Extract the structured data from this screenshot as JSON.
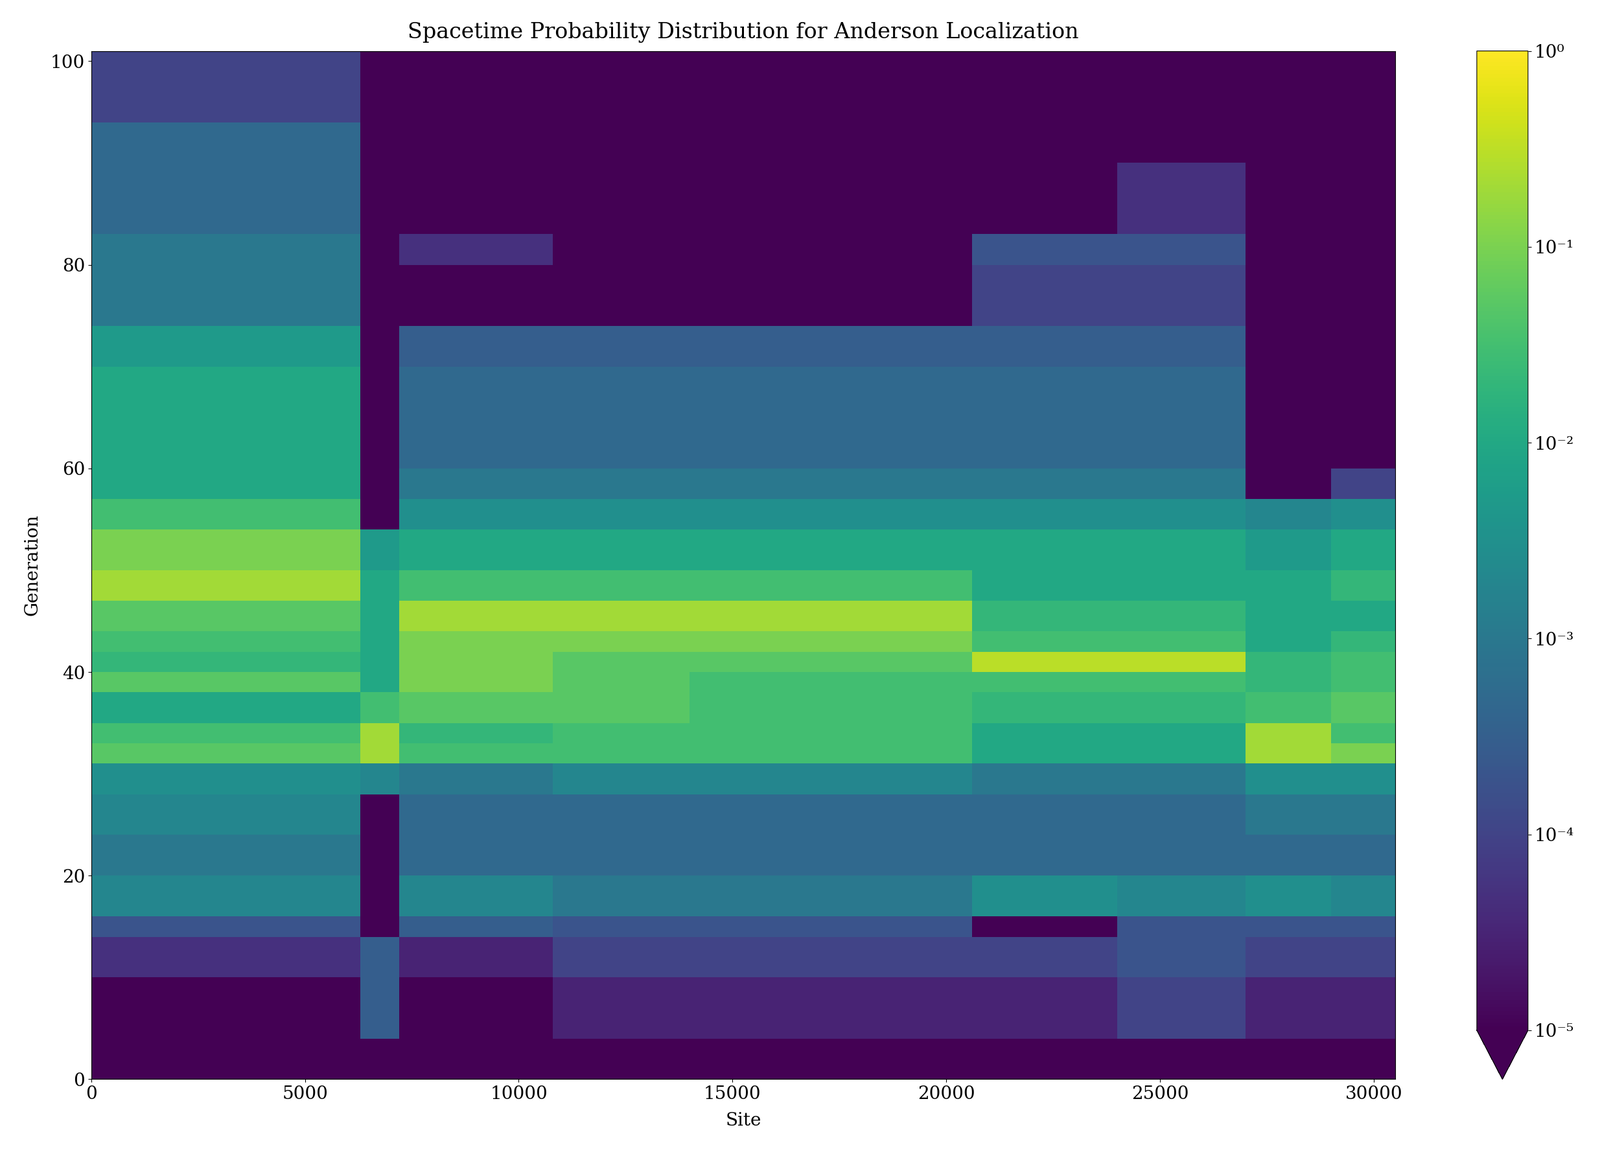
{
  "chart_data": {
    "type": "heatmap",
    "title": "Spacetime Probability Distribution for Anderson Localization",
    "x_label": "Site",
    "y_label": "Generation",
    "xlim": [
      0,
      30500
    ],
    "ylim": [
      0,
      101
    ],
    "xticks": [
      0,
      5000,
      10000,
      15000,
      20000,
      25000,
      30000
    ],
    "yticks": [
      0,
      20,
      40,
      60,
      80,
      100
    ],
    "log": true,
    "x_edges": [
      0,
      6300,
      7200,
      10800,
      14000,
      20600,
      24000,
      27000,
      29000,
      30500
    ],
    "y_edges": [
      0,
      4,
      10,
      14,
      16,
      20,
      24,
      28,
      31,
      33,
      35,
      38,
      40,
      42,
      44,
      47,
      50,
      54,
      57,
      60,
      65,
      70,
      74,
      80,
      83,
      90,
      94,
      101
    ],
    "cells": [
      [
        1e-06,
        1e-06,
        1e-06,
        1e-06,
        1e-06,
        1e-06,
        1e-06,
        1e-06,
        1e-06
      ],
      [
        1e-06,
        0.0003,
        1e-05,
        3e-05,
        3e-05,
        3e-05,
        0.0001,
        3e-05,
        3e-05
      ],
      [
        5e-05,
        0.0003,
        3e-05,
        0.0001,
        0.0001,
        0.0001,
        0.0002,
        0.0001,
        0.0001
      ],
      [
        0.0002,
        1e-06,
        0.0003,
        0.0002,
        0.0002,
        1e-05,
        0.0002,
        0.0002,
        0.0002
      ],
      [
        0.002,
        1e-06,
        0.002,
        0.001,
        0.001,
        0.003,
        0.002,
        0.003,
        0.002
      ],
      [
        0.001,
        1e-06,
        0.0005,
        0.0005,
        0.0005,
        0.0005,
        0.0005,
        0.0005,
        0.0005
      ],
      [
        0.002,
        1e-06,
        0.0005,
        0.0005,
        0.0005,
        0.0005,
        0.0005,
        0.001,
        0.001
      ],
      [
        0.003,
        0.002,
        0.001,
        0.002,
        0.002,
        0.001,
        0.001,
        0.003,
        0.003
      ],
      [
        0.05,
        0.2,
        0.03,
        0.03,
        0.03,
        0.01,
        0.01,
        0.2,
        0.1
      ],
      [
        0.03,
        0.2,
        0.02,
        0.03,
        0.03,
        0.01,
        0.01,
        0.2,
        0.03
      ],
      [
        0.01,
        0.03,
        0.05,
        0.05,
        0.03,
        0.02,
        0.02,
        0.03,
        0.05
      ],
      [
        0.05,
        0.01,
        0.1,
        0.05,
        0.03,
        0.03,
        0.03,
        0.02,
        0.03
      ],
      [
        0.02,
        0.01,
        0.1,
        0.05,
        0.05,
        0.3,
        0.3,
        0.02,
        0.03
      ],
      [
        0.03,
        0.01,
        0.1,
        0.1,
        0.1,
        0.03,
        0.03,
        0.01,
        0.02
      ],
      [
        0.05,
        0.01,
        0.2,
        0.2,
        0.2,
        0.02,
        0.02,
        0.01,
        0.01
      ],
      [
        0.2,
        0.01,
        0.03,
        0.03,
        0.03,
        0.01,
        0.01,
        0.01,
        0.02
      ],
      [
        0.1,
        0.005,
        0.01,
        0.01,
        0.01,
        0.01,
        0.01,
        0.005,
        0.01
      ],
      [
        0.03,
        1e-06,
        0.003,
        0.003,
        0.003,
        0.003,
        0.003,
        0.002,
        0.003
      ],
      [
        0.01,
        1e-06,
        0.001,
        0.001,
        0.001,
        0.001,
        0.001,
        1e-06,
        0.0001
      ],
      [
        0.01,
        1e-06,
        0.0005,
        0.0005,
        0.0005,
        0.0005,
        0.0005,
        1e-06,
        1e-06
      ],
      [
        0.01,
        1e-06,
        0.0005,
        0.0005,
        0.0005,
        0.0005,
        0.0005,
        1e-06,
        1e-06
      ],
      [
        0.005,
        1e-06,
        0.0003,
        0.0003,
        0.0003,
        0.0003,
        0.0003,
        1e-06,
        1e-06
      ],
      [
        0.001,
        1e-06,
        1e-05,
        1e-06,
        1e-06,
        0.0001,
        0.0001,
        1e-06,
        1e-06
      ],
      [
        0.001,
        1e-06,
        5e-05,
        1e-06,
        1e-06,
        0.0002,
        0.0002,
        1e-06,
        1e-06
      ],
      [
        0.0005,
        1e-06,
        1e-06,
        1e-06,
        1e-06,
        1e-05,
        5e-05,
        1e-06,
        1e-06
      ],
      [
        0.0005,
        1e-06,
        1e-06,
        1e-06,
        1e-06,
        1e-06,
        1e-05,
        1e-06,
        1e-06
      ],
      [
        0.0001,
        1e-06,
        1e-06,
        1e-06,
        1e-06,
        1e-06,
        1e-06,
        1e-06,
        1e-06
      ]
    ],
    "colorbar_range": [
      1e-05,
      1
    ],
    "colorbar_ticks": [
      {
        "value": 1e-05,
        "label": "10⁻⁵"
      },
      {
        "value": 0.0001,
        "label": "10⁻⁴"
      },
      {
        "value": 0.001,
        "label": "10⁻³"
      },
      {
        "value": 0.01,
        "label": "10⁻²"
      },
      {
        "value": 0.1,
        "label": "10⁻¹"
      },
      {
        "value": 1,
        "label": "10⁰"
      }
    ]
  }
}
